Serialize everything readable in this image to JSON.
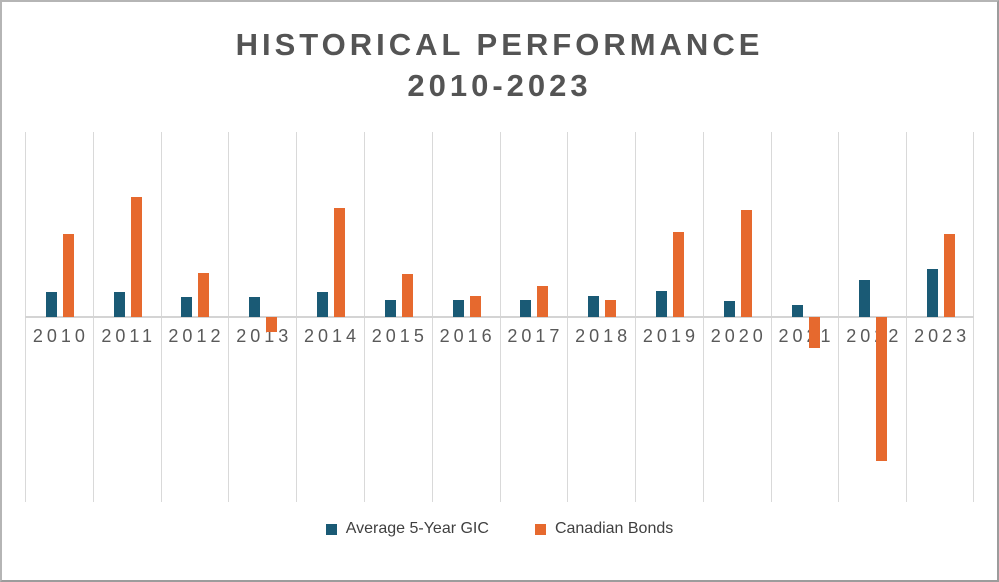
{
  "window": {
    "background": "#ffffff",
    "frame_border_color": "#a8a8a8"
  },
  "header": {
    "title_color": "#545454"
  },
  "chart_data": {
    "type": "bar",
    "title": "HISTORICAL PERFORMANCE",
    "subtitle": "2010-2023",
    "categories": [
      "2010",
      "2011",
      "2012",
      "2013",
      "2014",
      "2015",
      "2016",
      "2017",
      "2018",
      "2019",
      "2020",
      "2021",
      "2022",
      "2023"
    ],
    "series": [
      {
        "name": "Average 5-Year GIC",
        "color": "#1A5A75",
        "values": [
          2.0,
          2.0,
          1.6,
          1.6,
          2.0,
          1.4,
          1.4,
          1.4,
          1.7,
          2.1,
          1.3,
          1.0,
          3.0,
          3.9
        ]
      },
      {
        "name": "Canadian Bonds",
        "color": "#E6692E",
        "values": [
          6.7,
          9.7,
          3.6,
          -1.2,
          8.8,
          3.5,
          1.7,
          2.5,
          1.4,
          6.9,
          8.7,
          -2.5,
          -11.7,
          6.7
        ]
      }
    ],
    "ylim": [
      -15,
      15
    ],
    "y_axis_labels_visible": false,
    "grid": "vertical-category-boundaries",
    "gridline_color": "#d9d9d9",
    "axis_line_color": "#d4d4d4",
    "x_label_color": "#595959",
    "legend_position": "bottom"
  }
}
